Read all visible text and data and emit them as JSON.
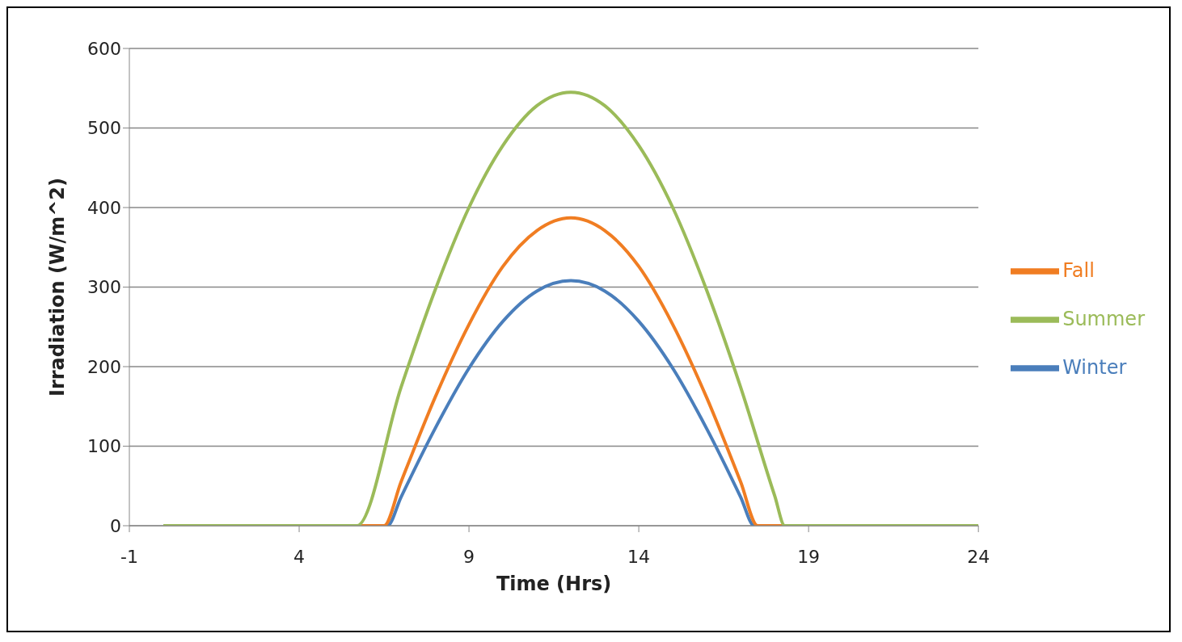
{
  "chart_data": {
    "type": "line",
    "xlabel": "Time (Hrs)",
    "ylabel": "Irradiation (W/m^2)",
    "xlim": [
      -1,
      24
    ],
    "xticks": [
      -1,
      4,
      9,
      14,
      19,
      24
    ],
    "ylim": [
      0,
      600
    ],
    "yticks": [
      0,
      100,
      200,
      300,
      400,
      500,
      600
    ],
    "grid": "y",
    "legend": "right",
    "marker": "none",
    "line_style": "solid",
    "series": [
      {
        "name": "Winter",
        "color": "#4a7ebb",
        "x": [
          0,
          6.6,
          7,
          8,
          9,
          10,
          11,
          12,
          13,
          14,
          15,
          16,
          17,
          17.4,
          24
        ],
        "values": [
          0,
          0,
          36,
          122,
          198,
          257,
          295,
          308,
          295,
          257,
          198,
          122,
          36,
          0,
          0
        ]
      },
      {
        "name": "Fall",
        "color": "#f07d22",
        "x": [
          0,
          6.5,
          7,
          8,
          9,
          10,
          11,
          12,
          13,
          14,
          15,
          16,
          17,
          17.5,
          24
        ],
        "values": [
          0,
          0,
          55,
          161,
          253,
          326,
          371,
          387,
          371,
          326,
          253,
          161,
          55,
          0,
          0
        ]
      },
      {
        "name": "Summer",
        "color": "#9bbb59",
        "x": [
          0,
          5.7,
          7,
          8,
          9,
          10,
          11,
          12,
          13,
          14,
          15,
          16,
          17,
          18,
          18.3,
          24
        ],
        "values": [
          0,
          0,
          174,
          296,
          400,
          478,
          528,
          545,
          528,
          478,
          400,
          296,
          174,
          38,
          0,
          0
        ]
      }
    ]
  }
}
